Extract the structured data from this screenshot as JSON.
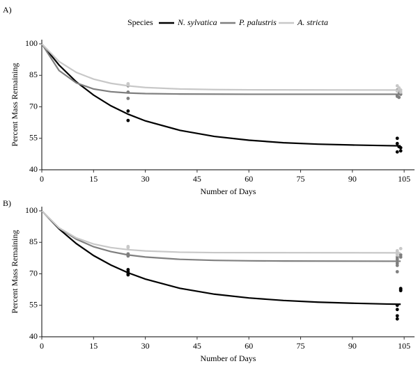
{
  "legend": {
    "title": "Species",
    "entries": [
      {
        "name": "N. sylvatica",
        "color": "#000000"
      },
      {
        "name": "P. palustris",
        "color": "#7f7f7f"
      },
      {
        "name": "A. stricta",
        "color": "#c8c8c8"
      }
    ]
  },
  "chart_data": [
    {
      "type": "line",
      "panel_label": "A)",
      "xlabel": "Number of Days",
      "ylabel": "Percent Mass Remaining",
      "xlim": [
        0,
        108
      ],
      "ylim": [
        40,
        102
      ],
      "xticks": [
        0,
        15,
        30,
        45,
        60,
        75,
        90,
        105
      ],
      "yticks": [
        40,
        55,
        70,
        85,
        100
      ],
      "series": [
        {
          "color": "#000000",
          "x": [
            0,
            5,
            10,
            15,
            20,
            25,
            30,
            40,
            50,
            60,
            70,
            80,
            90,
            100,
            104
          ],
          "values": [
            100,
            89.9,
            81.9,
            75.6,
            70.5,
            66.5,
            63.3,
            58.8,
            55.9,
            54.1,
            52.9,
            52.2,
            51.8,
            51.5,
            51.4
          ],
          "points_x": [
            25,
            25,
            103,
            103,
            103.5,
            104,
            103,
            104
          ],
          "points": [
            68,
            63.5,
            55,
            52.5,
            51,
            50.5,
            48.5,
            49
          ]
        },
        {
          "color": "#7f7f7f",
          "x": [
            0,
            5,
            10,
            15,
            20,
            25,
            30,
            40,
            60,
            104
          ],
          "values": [
            100,
            87.3,
            81.4,
            78.5,
            77.2,
            76.6,
            76.3,
            76.1,
            76,
            76
          ],
          "points_x": [
            25,
            25,
            25,
            103,
            103.5,
            104,
            103,
            103,
            103.5
          ],
          "points": [
            80,
            77,
            74,
            78,
            77,
            76,
            75.5,
            75,
            74.5
          ]
        },
        {
          "color": "#c8c8c8",
          "x": [
            0,
            5,
            10,
            15,
            20,
            25,
            30,
            40,
            50,
            60,
            104
          ],
          "values": [
            100,
            91.6,
            86.4,
            83.2,
            81.2,
            80,
            79.2,
            78.5,
            78.2,
            78.1,
            78
          ],
          "points_x": [
            25,
            25,
            103,
            103.5,
            104,
            103,
            104
          ],
          "points": [
            81,
            80.5,
            80,
            79,
            78,
            77.5,
            77
          ]
        }
      ]
    },
    {
      "type": "line",
      "panel_label": "B)",
      "xlabel": "Number of Days",
      "ylabel": "Percent Mass Remaining",
      "xlim": [
        0,
        108
      ],
      "ylim": [
        40,
        102
      ],
      "xticks": [
        0,
        15,
        30,
        45,
        60,
        75,
        90,
        105
      ],
      "yticks": [
        40,
        55,
        70,
        85,
        100
      ],
      "series": [
        {
          "color": "#000000",
          "x": [
            0,
            5,
            10,
            15,
            20,
            25,
            30,
            40,
            50,
            60,
            70,
            80,
            90,
            100,
            104
          ],
          "values": [
            100,
            91.4,
            84.4,
            78.7,
            74.2,
            70.5,
            67.5,
            63.1,
            60.3,
            58.5,
            57.3,
            56.5,
            56,
            55.6,
            55.5
          ],
          "points_x": [
            25,
            25,
            25,
            25,
            103,
            103,
            103,
            103,
            104,
            104,
            104
          ],
          "points": [
            72,
            71,
            70,
            69.5,
            55,
            53,
            50,
            48.5,
            63,
            62.5,
            62
          ]
        },
        {
          "color": "#7f7f7f",
          "x": [
            0,
            5,
            10,
            15,
            20,
            25,
            30,
            40,
            50,
            60,
            70,
            104
          ],
          "values": [
            100,
            91.8,
            86.5,
            82.9,
            80.6,
            79,
            78,
            76.9,
            76.4,
            76.2,
            76.1,
            76
          ],
          "points_x": [
            25,
            25,
            25,
            103,
            103,
            103,
            103,
            103,
            103,
            104,
            104
          ],
          "points": [
            79.5,
            79,
            78.5,
            78,
            77,
            76,
            75,
            74,
            71,
            79,
            78
          ]
        },
        {
          "color": "#c8c8c8",
          "x": [
            0,
            5,
            10,
            15,
            20,
            25,
            30,
            40,
            50,
            104
          ],
          "values": [
            100,
            91.9,
            87.1,
            84.2,
            82.5,
            81.5,
            80.9,
            80.3,
            80.1,
            80
          ],
          "points_x": [
            25,
            25,
            103,
            103,
            103,
            103,
            104
          ],
          "points": [
            83,
            82.5,
            81,
            80.5,
            79.5,
            79,
            82
          ]
        }
      ]
    }
  ]
}
